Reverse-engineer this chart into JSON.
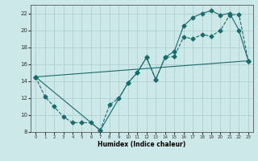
{
  "xlabel": "Humidex (Indice chaleur)",
  "xlim": [
    -0.5,
    23.5
  ],
  "ylim": [
    8,
    23
  ],
  "yticks": [
    8,
    10,
    12,
    14,
    16,
    18,
    20,
    22
  ],
  "xticks": [
    0,
    1,
    2,
    3,
    4,
    5,
    6,
    7,
    8,
    9,
    10,
    11,
    12,
    13,
    14,
    15,
    16,
    17,
    18,
    19,
    20,
    21,
    22,
    23
  ],
  "bg_color": "#cce8e8",
  "grid_color": "#aacccc",
  "line_color": "#1a6b6b",
  "line1_x": [
    0,
    1,
    2,
    3,
    4,
    5,
    6,
    7,
    8,
    9,
    10,
    11,
    12,
    13,
    14,
    15,
    16,
    17,
    18,
    19,
    20,
    21,
    22,
    23
  ],
  "line1_y": [
    14.5,
    12.2,
    11.0,
    9.8,
    9.1,
    9.1,
    9.1,
    8.2,
    11.2,
    12.0,
    13.8,
    15.0,
    16.8,
    14.2,
    16.8,
    16.9,
    19.2,
    19.0,
    19.5,
    19.3,
    20.0,
    21.8,
    21.9,
    16.4
  ],
  "line2_x": [
    0,
    7,
    10,
    11,
    12,
    13,
    14,
    15,
    16,
    17,
    18,
    19,
    20,
    21,
    22,
    23
  ],
  "line2_y": [
    14.5,
    8.2,
    13.8,
    15.0,
    16.8,
    14.2,
    16.8,
    17.5,
    20.5,
    21.5,
    22.0,
    22.3,
    21.8,
    22.0,
    20.0,
    16.4
  ],
  "line3_x": [
    0,
    23
  ],
  "line3_y": [
    14.5,
    16.4
  ]
}
